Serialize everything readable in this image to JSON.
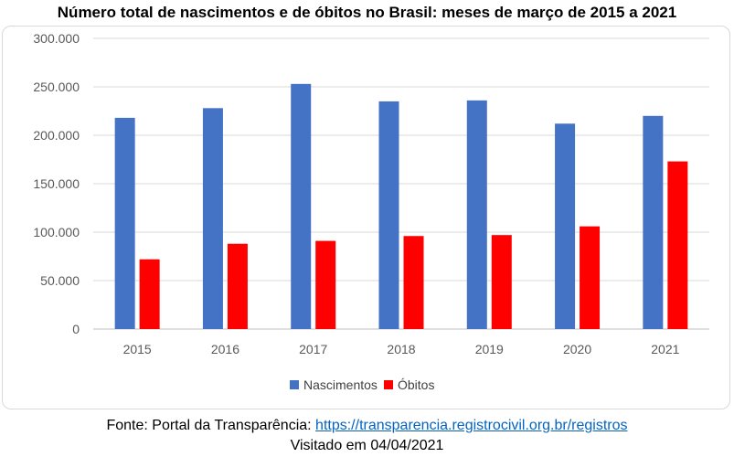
{
  "chart_data": {
    "type": "bar",
    "title": "Número total de nascimentos e de óbitos no Brasil: meses de março de 2015 a 2021",
    "categories": [
      "2015",
      "2016",
      "2017",
      "2018",
      "2019",
      "2020",
      "2021"
    ],
    "series": [
      {
        "name": "Nascimentos",
        "color": "#4472c4",
        "values": [
          218000,
          228000,
          253000,
          235000,
          236000,
          212000,
          220000
        ]
      },
      {
        "name": "Óbitos",
        "color": "#ff0000",
        "values": [
          72000,
          88000,
          91000,
          96000,
          97000,
          106000,
          173000
        ]
      }
    ],
    "ylim": [
      0,
      300000
    ],
    "yticks": [
      "0",
      "50.000",
      "100.000",
      "150.000",
      "200.000",
      "250.000",
      "300.000"
    ],
    "grid": true,
    "legend": "bottom"
  },
  "footer": {
    "source_prefix": "Fonte: Portal da Transparência:",
    "source_link": "https://transparencia.registrocivil.org.br/registros",
    "visited": "Visitado em 04/04/2021"
  }
}
